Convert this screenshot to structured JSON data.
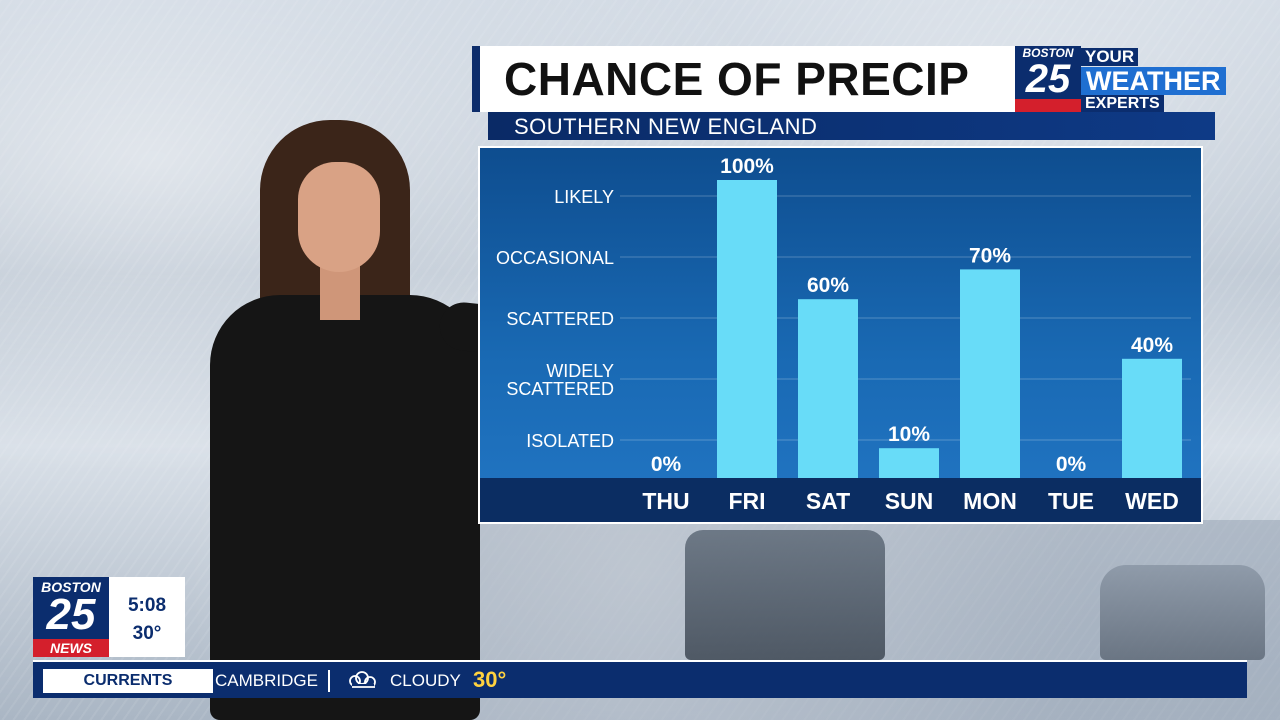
{
  "header": {
    "title": "CHANCE OF PRECIP",
    "subtitle": "SOUTHERN NEW ENGLAND",
    "logo": {
      "city": "BOSTON",
      "channel": "25",
      "line1": "YOUR",
      "line2": "WEATHER",
      "line3": "EXPERTS"
    }
  },
  "chart_data": {
    "type": "bar",
    "categories": [
      "THU",
      "FRI",
      "SAT",
      "SUN",
      "MON",
      "TUE",
      "WED"
    ],
    "values": [
      0,
      100,
      60,
      10,
      70,
      0,
      40
    ],
    "value_labels": [
      "0%",
      "100%",
      "60%",
      "10%",
      "70%",
      "0%",
      "40%"
    ],
    "y_levels": [
      "ISOLATED",
      "WIDELY SCATTERED",
      "SCATTERED",
      "OCCASIONAL",
      "LIKELY"
    ],
    "ylim": [
      0,
      100
    ],
    "grid": true,
    "colors": {
      "bar": "#68dcf8",
      "panel": "#1466b0",
      "axis_band": "#0b2d62"
    }
  },
  "bug": {
    "city": "BOSTON",
    "channel": "25",
    "brand": "NEWS",
    "time": "5:08",
    "temp": "30°"
  },
  "ticker": {
    "label": "CURRENTS",
    "city": "CAMBRIDGE",
    "condition_icon": "cloudy-icon",
    "condition": "CLOUDY",
    "temp": "30°"
  }
}
